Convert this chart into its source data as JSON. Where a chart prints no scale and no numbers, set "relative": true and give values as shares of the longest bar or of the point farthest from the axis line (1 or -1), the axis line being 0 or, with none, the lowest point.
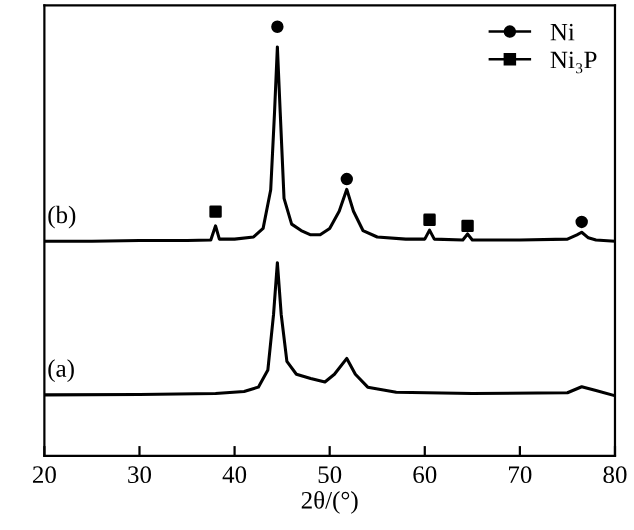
{
  "chart_data": {
    "type": "line",
    "relative": true,
    "xlabel": "2θ/(°)",
    "xlim": [
      20,
      80
    ],
    "xticks": [
      20,
      30,
      40,
      50,
      60,
      70,
      80
    ],
    "tick_labels": "x",
    "legend": "top right",
    "grid": false,
    "series": [
      {
        "name": "(b)",
        "color": "#000000",
        "marker": "none",
        "x": [
          20,
          25,
          30,
          35,
          37.5,
          38.0,
          38.4,
          40,
          42,
          43,
          43.8,
          44.2,
          44.5,
          44.8,
          45.2,
          46,
          47,
          48,
          49,
          50,
          51,
          51.8,
          52.5,
          53.5,
          55,
          58,
          60,
          60.5,
          61,
          64,
          64.5,
          65,
          70,
          75,
          76,
          76.5,
          77.2,
          78,
          80
        ],
        "values": [
          0.5,
          0.5,
          0.502,
          0.502,
          0.503,
          0.536,
          0.505,
          0.505,
          0.51,
          0.53,
          0.62,
          0.8,
          0.953,
          0.8,
          0.6,
          0.54,
          0.525,
          0.515,
          0.515,
          0.53,
          0.57,
          0.621,
          0.57,
          0.525,
          0.51,
          0.505,
          0.505,
          0.526,
          0.505,
          0.503,
          0.517,
          0.503,
          0.503,
          0.505,
          0.515,
          0.521,
          0.508,
          0.503,
          0.5
        ]
      },
      {
        "name": "(a)",
        "color": "#000000",
        "marker": "none",
        "x": [
          20,
          30,
          38,
          41,
          42.5,
          43.5,
          44.1,
          44.5,
          44.9,
          45.5,
          46.5,
          48,
          49.5,
          50.5,
          51.8,
          52.7,
          54,
          57,
          65,
          75,
          76.5,
          78,
          80
        ],
        "values": [
          0.142,
          0.143,
          0.145,
          0.15,
          0.16,
          0.2,
          0.33,
          0.45,
          0.33,
          0.22,
          0.19,
          0.18,
          0.172,
          0.19,
          0.227,
          0.19,
          0.16,
          0.148,
          0.145,
          0.147,
          0.161,
          0.152,
          0.14
        ]
      },
      {
        "name": "Ni",
        "type": "scatter",
        "color": "#000000",
        "marker": "circle",
        "x": [
          44.5,
          51.8,
          76.5
        ],
        "values": [
          1.0,
          0.645,
          0.545
        ]
      },
      {
        "name": "Ni₃P",
        "type": "scatter",
        "color": "#000000",
        "marker": "square",
        "x": [
          38.0,
          60.5,
          64.5
        ],
        "values": [
          0.569,
          0.55,
          0.536
        ]
      }
    ]
  }
}
